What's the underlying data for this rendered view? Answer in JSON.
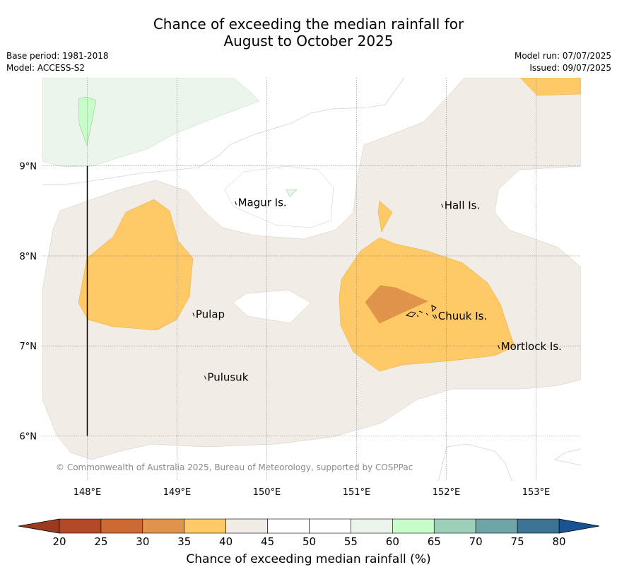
{
  "title_line1": "Chance of exceeding the median rainfall for",
  "title_line2": "August to October 2025",
  "meta_left": [
    "Base period: 1981-2018",
    "Model: ACCESS-S2"
  ],
  "meta_right": [
    "Model run: 07/07/2025",
    "Issued: 09/07/2025"
  ],
  "copyright": "© Commonwealth of Australia 2025, Bureau of Meteorology, supported by COSPPac",
  "lon_ticks": [
    {
      "lon": 148,
      "label": "148°E"
    },
    {
      "lon": 149,
      "label": "149°E"
    },
    {
      "lon": 150,
      "label": "150°E"
    },
    {
      "lon": 151,
      "label": "151°E"
    },
    {
      "lon": 152,
      "label": "152°E"
    },
    {
      "lon": 153,
      "label": "153°E"
    }
  ],
  "lat_ticks": [
    {
      "lat": 9,
      "label": "9°N"
    },
    {
      "lat": 8,
      "label": "8°N"
    },
    {
      "lat": 7,
      "label": "7°N"
    },
    {
      "lat": 6,
      "label": "6°N"
    }
  ],
  "extent": {
    "lon": [
      147.5,
      153.5
    ],
    "lat": [
      5.5,
      9.98
    ]
  },
  "places": [
    {
      "name": "Magur Is.",
      "lon": 149.67,
      "lat": 8.56
    },
    {
      "name": "Hall Is.",
      "lon": 151.97,
      "lat": 8.53
    },
    {
      "name": "Pulap",
      "lon": 149.2,
      "lat": 7.32
    },
    {
      "name": "Chuuk Is.",
      "lon": 151.9,
      "lat": 7.3
    },
    {
      "name": "Mortlock Is.",
      "lon": 152.6,
      "lat": 6.96
    },
    {
      "name": "Pulusuk",
      "lon": 149.33,
      "lat": 6.62
    }
  ],
  "colorbar": {
    "title": "Chance of exceeding median rainfall (%)",
    "ticks": [
      "20",
      "25",
      "30",
      "35",
      "40",
      "45",
      "50",
      "55",
      "60",
      "65",
      "70",
      "75",
      "80"
    ],
    "colors": [
      "#b34a27",
      "#cd6a34",
      "#e0954a",
      "#fec966",
      "#f1ece5",
      "#ffffff",
      "#ffffff",
      "#ebf5eb",
      "#c8fcc8",
      "#9dd0b8",
      "#6ea4a5",
      "#3d7495"
    ],
    "under_color": "#9c3a1f",
    "over_color": "#175491"
  }
}
